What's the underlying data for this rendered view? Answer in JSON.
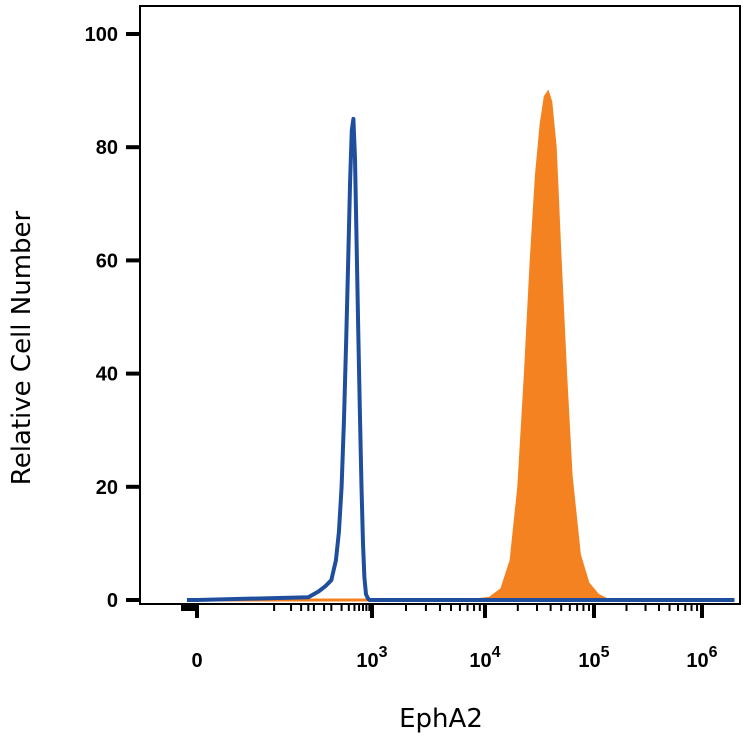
{
  "chart_data": {
    "type": "area",
    "xlabel": "EphA2",
    "ylabel": "Relative Cell Number",
    "x_scale": "biexponential",
    "ylim": [
      0,
      100
    ],
    "y_ticks": [
      {
        "value": 0,
        "label": "0"
      },
      {
        "value": 20,
        "label": "20"
      },
      {
        "value": 40,
        "label": "40"
      },
      {
        "value": 60,
        "label": "60"
      },
      {
        "value": 80,
        "label": "80"
      },
      {
        "value": 100,
        "label": "100"
      }
    ],
    "x_ticks": [
      {
        "value": 0,
        "base": "0",
        "exp": ""
      },
      {
        "value": 1000,
        "base": "10",
        "exp": "3"
      },
      {
        "value": 10000,
        "base": "10",
        "exp": "4"
      },
      {
        "value": 100000,
        "base": "10",
        "exp": "5"
      },
      {
        "value": 1000000,
        "base": "10",
        "exp": "6"
      }
    ],
    "series": [
      {
        "style": "filled",
        "color": "#F58220",
        "points": [
          [
            7000,
            0
          ],
          [
            11000,
            0.5
          ],
          [
            14000,
            2
          ],
          [
            17000,
            7
          ],
          [
            20000,
            20
          ],
          [
            23000,
            40
          ],
          [
            26000,
            60
          ],
          [
            29000,
            75
          ],
          [
            32000,
            84
          ],
          [
            35000,
            89
          ],
          [
            38000,
            90
          ],
          [
            41000,
            88
          ],
          [
            45000,
            80
          ],
          [
            50000,
            60
          ],
          [
            56000,
            40
          ],
          [
            63000,
            22
          ],
          [
            75000,
            8
          ],
          [
            90000,
            3
          ],
          [
            110000,
            1
          ],
          [
            130000,
            0.3
          ],
          [
            150000,
            0
          ]
        ]
      },
      {
        "style": "outline",
        "color": "#1F4E9D",
        "points": [
          [
            -200,
            0
          ],
          [
            0,
            0
          ],
          [
            80,
            0.5
          ],
          [
            120,
            1.5
          ],
          [
            160,
            2.5
          ],
          [
            200,
            3.5
          ],
          [
            240,
            7
          ],
          [
            270,
            12
          ],
          [
            300,
            20
          ],
          [
            330,
            32
          ],
          [
            360,
            46
          ],
          [
            390,
            60
          ],
          [
            420,
            74
          ],
          [
            450,
            83
          ],
          [
            480,
            85
          ],
          [
            510,
            78
          ],
          [
            540,
            65
          ],
          [
            580,
            48
          ],
          [
            620,
            33
          ],
          [
            660,
            20
          ],
          [
            700,
            10
          ],
          [
            740,
            4
          ],
          [
            790,
            1
          ],
          [
            850,
            0.3
          ],
          [
            900,
            0
          ],
          [
            2000000,
            0
          ]
        ]
      },
      {
        "style": "baseline",
        "color": "#F58220",
        "points": [
          [
            0,
            0
          ],
          [
            7000,
            0
          ]
        ]
      }
    ]
  }
}
